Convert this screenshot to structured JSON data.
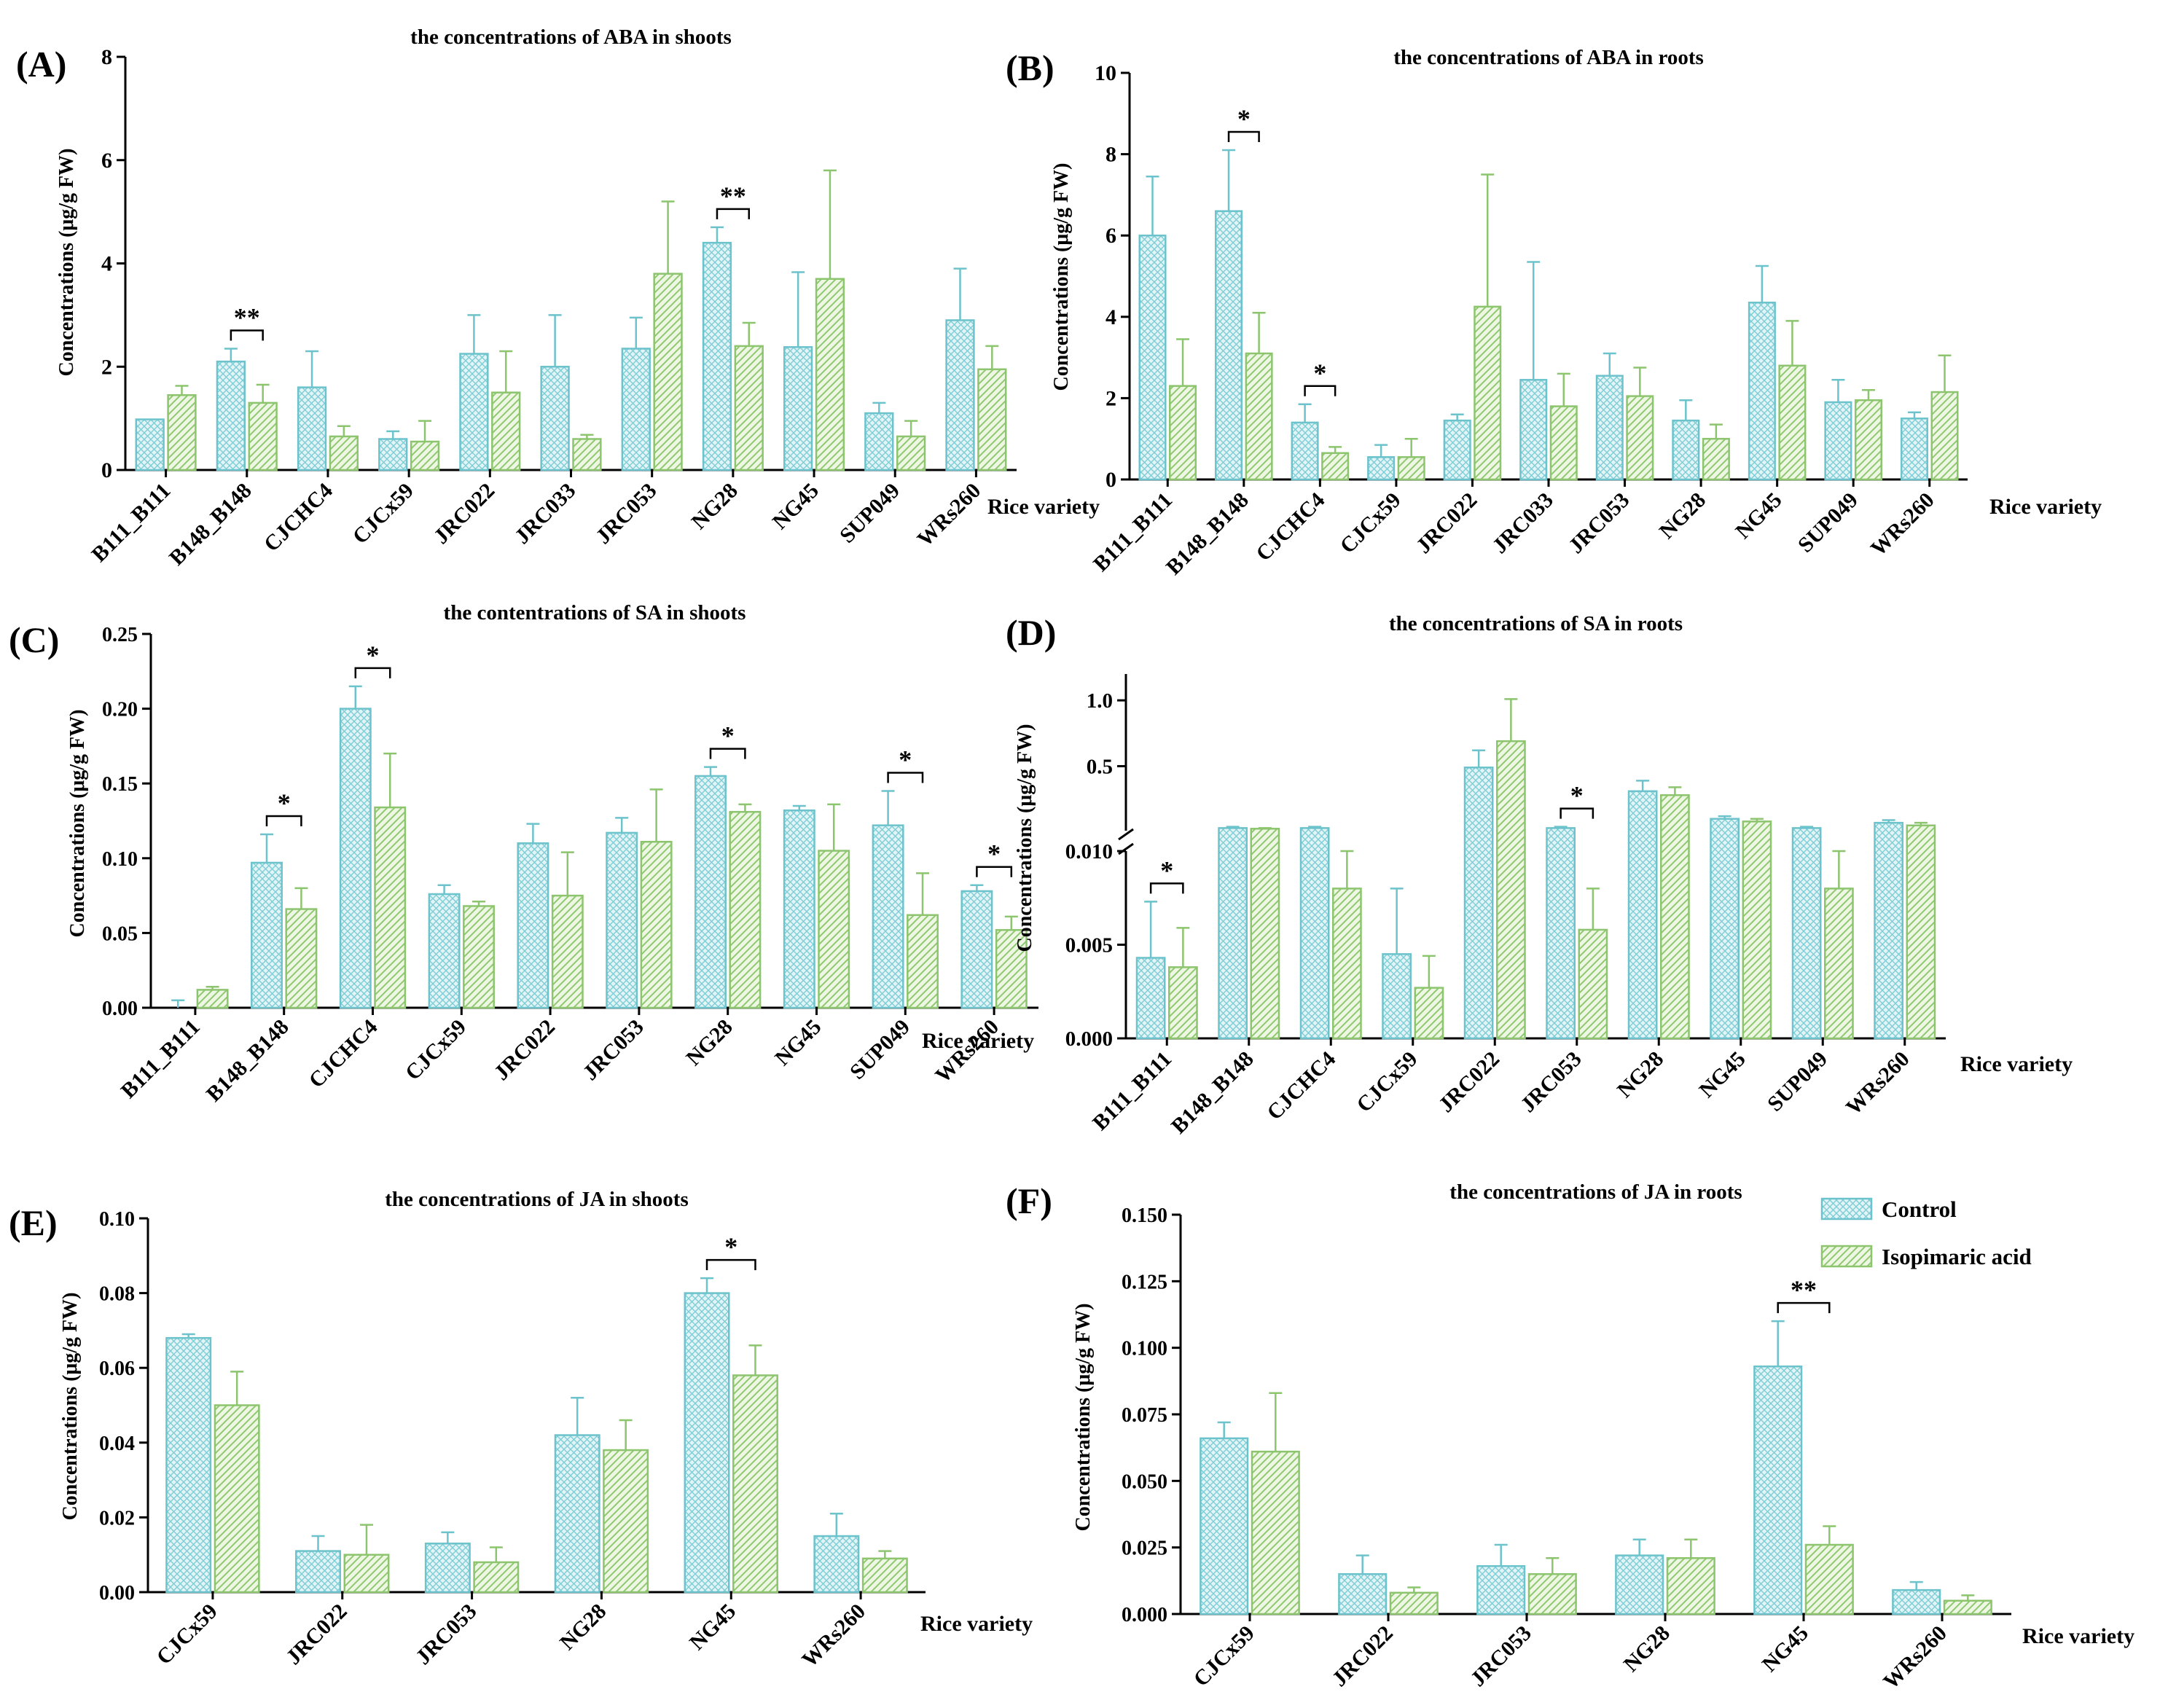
{
  "legend": {
    "labels": [
      "Control",
      "Isopimaric acid"
    ],
    "position": "top-right of panel F"
  },
  "colors": {
    "control_stroke": "#6cc3cc",
    "control_fill": "#e3f4f6",
    "isopimaric_stroke": "#8cc56e",
    "isopimaric_fill": "#eef7e4",
    "axis": "#000000"
  },
  "chart_data": [
    {
      "panel": "(A)",
      "type": "bar",
      "title": "the concentrations of ABA in shoots",
      "ylabel": "Concentrations (μg/g FW)",
      "xlabel": "",
      "ylim": [
        0,
        8
      ],
      "yticks": [
        "0",
        "2",
        "4",
        "6",
        "8"
      ],
      "categories": [
        "B111_B111",
        "B148_B148",
        "CJCHC4",
        "CJCx59",
        "JRC022",
        "JRC033",
        "JRC053",
        "NG28",
        "NG45",
        "SUP049",
        "WRs260"
      ],
      "series": [
        {
          "name": "Control",
          "values": [
            0.98,
            2.1,
            1.6,
            0.6,
            2.25,
            2.0,
            2.35,
            4.4,
            2.38,
            1.1,
            2.9
          ],
          "errors": [
            0,
            0.25,
            0.7,
            0.15,
            0.75,
            1.0,
            0.6,
            0.3,
            1.45,
            0.2,
            1.0
          ]
        },
        {
          "name": "Isopimaric acid",
          "values": [
            1.45,
            1.3,
            0.65,
            0.55,
            1.5,
            0.6,
            3.8,
            2.4,
            3.7,
            0.65,
            1.95
          ],
          "errors": [
            0.18,
            0.35,
            0.2,
            0.4,
            0.8,
            0.08,
            1.4,
            0.45,
            2.1,
            0.3,
            0.45
          ]
        }
      ],
      "significance": [
        {
          "index": 1,
          "label": "**"
        },
        {
          "index": 7,
          "label": "**"
        }
      ]
    },
    {
      "panel": "(B)",
      "type": "bar",
      "title": "the concentrations of ABA in roots",
      "ylabel": "Concentrations (μg/g FW)",
      "xlabel": "Rice variety",
      "xlabel_left": "Rice variety",
      "ylim": [
        0,
        10
      ],
      "yticks": [
        "0",
        "2",
        "4",
        "6",
        "8",
        "10"
      ],
      "categories": [
        "B111_B111",
        "B148_B148",
        "CJCHC4",
        "CJCx59",
        "JRC022",
        "JRC033",
        "JRC053",
        "NG28",
        "NG45",
        "SUP049",
        "WRs260"
      ],
      "series": [
        {
          "name": "Control",
          "values": [
            6.0,
            6.6,
            1.4,
            0.55,
            1.45,
            2.45,
            2.55,
            1.45,
            4.35,
            1.9,
            1.5
          ],
          "errors": [
            1.45,
            1.5,
            0.45,
            0.3,
            0.15,
            2.9,
            0.55,
            0.5,
            0.9,
            0.55,
            0.15
          ]
        },
        {
          "name": "Isopimaric acid",
          "values": [
            2.3,
            3.1,
            0.65,
            0.55,
            4.25,
            1.8,
            2.05,
            1.0,
            2.8,
            1.95,
            2.15
          ],
          "errors": [
            1.15,
            1.0,
            0.15,
            0.45,
            3.25,
            0.8,
            0.7,
            0.35,
            1.1,
            0.25,
            0.9
          ]
        }
      ],
      "significance": [
        {
          "index": 1,
          "label": "*"
        },
        {
          "index": 2,
          "label": "*"
        }
      ]
    },
    {
      "panel": "(C)",
      "type": "bar",
      "title": "the contentrations of SA in shoots",
      "ylabel": "Concentrations (μg/g FW)",
      "xlabel": "Rice variety",
      "ylim": [
        0,
        0.25
      ],
      "yticks": [
        "0.00",
        "0.05",
        "0.10",
        "0.15",
        "0.20",
        "0.25"
      ],
      "categories": [
        "B111_B111",
        "B148_B148",
        "CJCHC4",
        "CJCx59",
        "JRC022",
        "JRC053",
        "NG28",
        "NG45",
        "SUP049",
        "WRs260"
      ],
      "series": [
        {
          "name": "Control",
          "values": [
            0.0,
            0.097,
            0.2,
            0.076,
            0.11,
            0.117,
            0.155,
            0.132,
            0.122,
            0.078
          ],
          "errors": [
            0.005,
            0.019,
            0.015,
            0.006,
            0.013,
            0.01,
            0.006,
            0.003,
            0.023,
            0.004
          ]
        },
        {
          "name": "Isopimaric acid",
          "values": [
            0.012,
            0.066,
            0.134,
            0.068,
            0.075,
            0.111,
            0.131,
            0.105,
            0.062,
            0.052
          ],
          "errors": [
            0.002,
            0.014,
            0.036,
            0.003,
            0.029,
            0.035,
            0.005,
            0.031,
            0.028,
            0.009
          ]
        }
      ],
      "significance": [
        {
          "index": 1,
          "label": "*"
        },
        {
          "index": 2,
          "label": "*"
        },
        {
          "index": 6,
          "label": "*"
        },
        {
          "index": 8,
          "label": "*"
        },
        {
          "index": 9,
          "label": "*"
        }
      ]
    },
    {
      "panel": "(D)",
      "type": "bar",
      "title": "the concentrations of SA in roots",
      "ylabel": "Concentrations (μg/g FW)",
      "xlabel": "Rice variety",
      "axis_break": {
        "lower_range": [
          0,
          0.01
        ],
        "upper_range": [
          0.01,
          1.2
        ]
      },
      "yticks_lower": [
        "0.000",
        "0.005",
        "0.010"
      ],
      "yticks_upper": [
        "0.5",
        "1.0"
      ],
      "categories": [
        "B111_B111",
        "B148_B148",
        "CJCHC4",
        "CJCx59",
        "JRC022",
        "JRC053",
        "NG28",
        "NG45",
        "SUP049",
        "WRs260"
      ],
      "series": [
        {
          "name": "Control",
          "values": [
            0.0043,
            0.03,
            0.03,
            0.0045,
            0.49,
            0.03,
            0.31,
            0.1,
            0.03,
            0.07
          ],
          "errors": [
            0.003,
            0.01,
            0.01,
            0.0035,
            0.13,
            0.01,
            0.08,
            0.02,
            0.01,
            0.02
          ]
        },
        {
          "name": "Isopimaric acid",
          "values": [
            0.0038,
            0.025,
            0.008,
            0.0027,
            0.69,
            0.0058,
            0.28,
            0.08,
            0.008,
            0.05
          ],
          "errors": [
            0.0021,
            0.005,
            0.002,
            0.0017,
            0.32,
            0.0022,
            0.06,
            0.02,
            0.002,
            0.02
          ]
        }
      ],
      "significance": [
        {
          "index": 0,
          "label": "*"
        },
        {
          "index": 5,
          "label": "*"
        }
      ]
    },
    {
      "panel": "(E)",
      "type": "bar",
      "title": "the concentrations of JA in shoots",
      "ylabel": "Concentrations (μg/g FW)",
      "xlabel": "Rice variety",
      "ylim": [
        0,
        0.1
      ],
      "yticks": [
        "0.00",
        "0.02",
        "0.04",
        "0.06",
        "0.08",
        "0.10"
      ],
      "categories": [
        "CJCx59",
        "JRC022",
        "JRC053",
        "NG28",
        "NG45",
        "WRs260"
      ],
      "series": [
        {
          "name": "Control",
          "values": [
            0.068,
            0.011,
            0.013,
            0.042,
            0.08,
            0.015
          ],
          "errors": [
            0.001,
            0.004,
            0.003,
            0.01,
            0.004,
            0.006
          ]
        },
        {
          "name": "Isopimaric acid",
          "values": [
            0.05,
            0.01,
            0.008,
            0.038,
            0.058,
            0.009
          ],
          "errors": [
            0.009,
            0.008,
            0.004,
            0.008,
            0.008,
            0.002
          ]
        }
      ],
      "significance": [
        {
          "index": 4,
          "label": "*"
        }
      ]
    },
    {
      "panel": "(F)",
      "type": "bar",
      "title": "the concentrations of JA in roots",
      "ylabel": "Concentrations (μg/g FW)",
      "xlabel": "Rice variety",
      "ylim": [
        0,
        0.15
      ],
      "yticks": [
        "0.000",
        "0.025",
        "0.050",
        "0.075",
        "0.100",
        "0.125",
        "0.150"
      ],
      "categories": [
        "CJCx59",
        "JRC022",
        "JRC053",
        "NG28",
        "NG45",
        "WRs260"
      ],
      "series": [
        {
          "name": "Control",
          "values": [
            0.066,
            0.015,
            0.018,
            0.022,
            0.093,
            0.009
          ],
          "errors": [
            0.006,
            0.007,
            0.008,
            0.006,
            0.017,
            0.003
          ]
        },
        {
          "name": "Isopimaric acid",
          "values": [
            0.061,
            0.008,
            0.015,
            0.021,
            0.026,
            0.005
          ],
          "errors": [
            0.022,
            0.002,
            0.006,
            0.007,
            0.007,
            0.002
          ]
        }
      ],
      "significance": [
        {
          "index": 4,
          "label": "**"
        }
      ]
    }
  ]
}
